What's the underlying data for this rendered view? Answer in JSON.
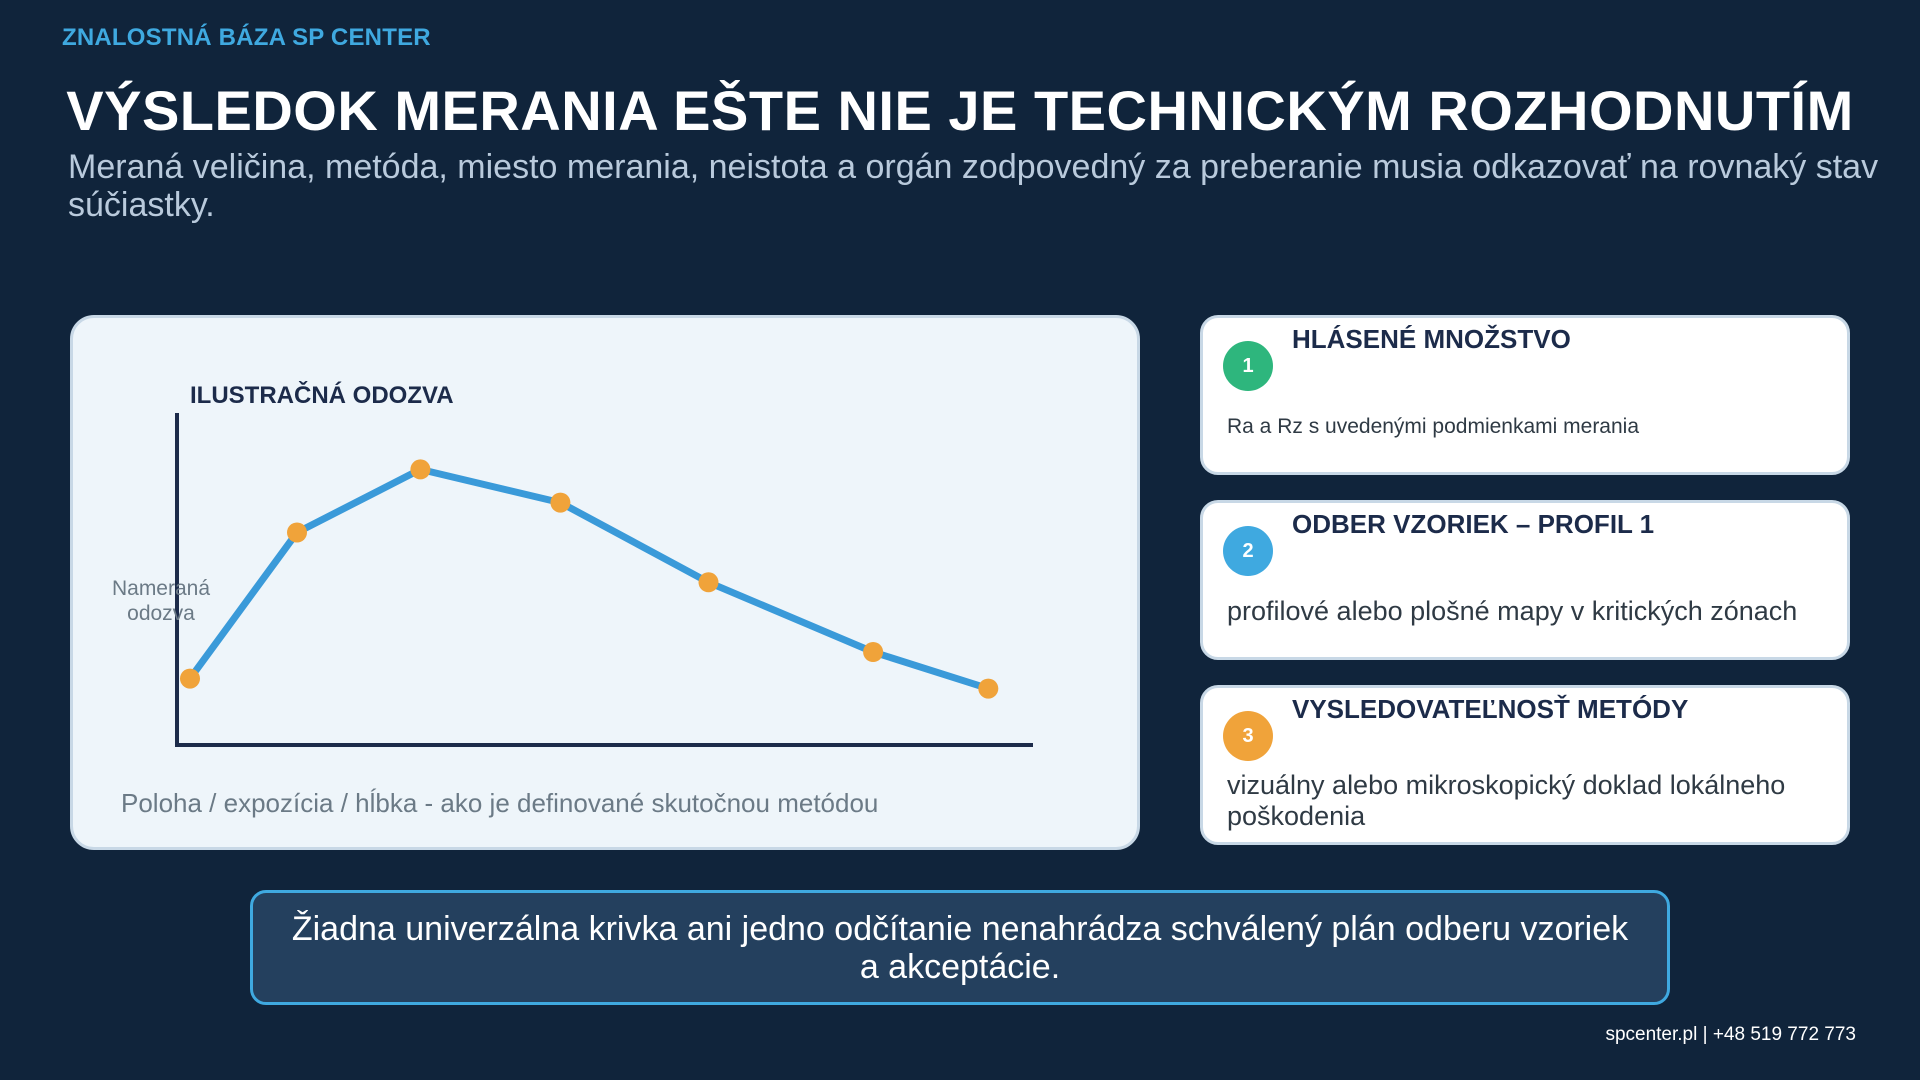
{
  "brand": "ZNALOSTNÁ BÁZA SP CENTER",
  "title": "VÝSLEDOK MERANIA EŠTE NIE JE TECHNICKÝM ROZHODNUTÍM",
  "subtitle": "Meraná veličina, metóda, miesto merania, neistota a orgán zodpovedný za preberanie musia odkazovať na rovnaký stav súčiastky.",
  "chart_data": {
    "type": "line",
    "title": "ILUSTRAČNÁ ODOZVA",
    "ylabel_lines": [
      "Nameraná",
      "odozva"
    ],
    "xlabel": "Poloha / expozícia / hĺbka - ako je definované skutočnou metódou",
    "x": [
      0.0,
      0.13,
      0.28,
      0.45,
      0.63,
      0.83,
      0.97
    ],
    "y": [
      0.2,
      0.64,
      0.83,
      0.73,
      0.49,
      0.28,
      0.17
    ],
    "xlim": [
      0,
      1
    ],
    "ylim": [
      0,
      1
    ],
    "grid": false,
    "line_color": "#3a9ad9",
    "marker_color": "#f0a33a",
    "axis_color": "#1c2b4a"
  },
  "cards": [
    {
      "number": "1",
      "heading": "HLÁSENÉ MNOŽSTVO",
      "desc": "Ra a Rz s uvedenými podmienkami merania",
      "color": "#2eb67d"
    },
    {
      "number": "2",
      "heading": "ODBER VZORIEK – PROFIL 1",
      "desc": "profilové alebo plošné mapy v kritických zónach",
      "color": "#3fa9e0"
    },
    {
      "number": "3",
      "heading": "VYSLEDOVATEĽNOSŤ METÓDY",
      "desc": "vizuálny alebo mikroskopický doklad lokálneho poškodenia",
      "color": "#f0a33a"
    }
  ],
  "callout": "Žiadna univerzálna krivka ani jedno odčítanie nenahrádza schválený plán odberu vzoriek a akceptácie.",
  "footer": "spcenter.pl  |  +48 519 772 773"
}
